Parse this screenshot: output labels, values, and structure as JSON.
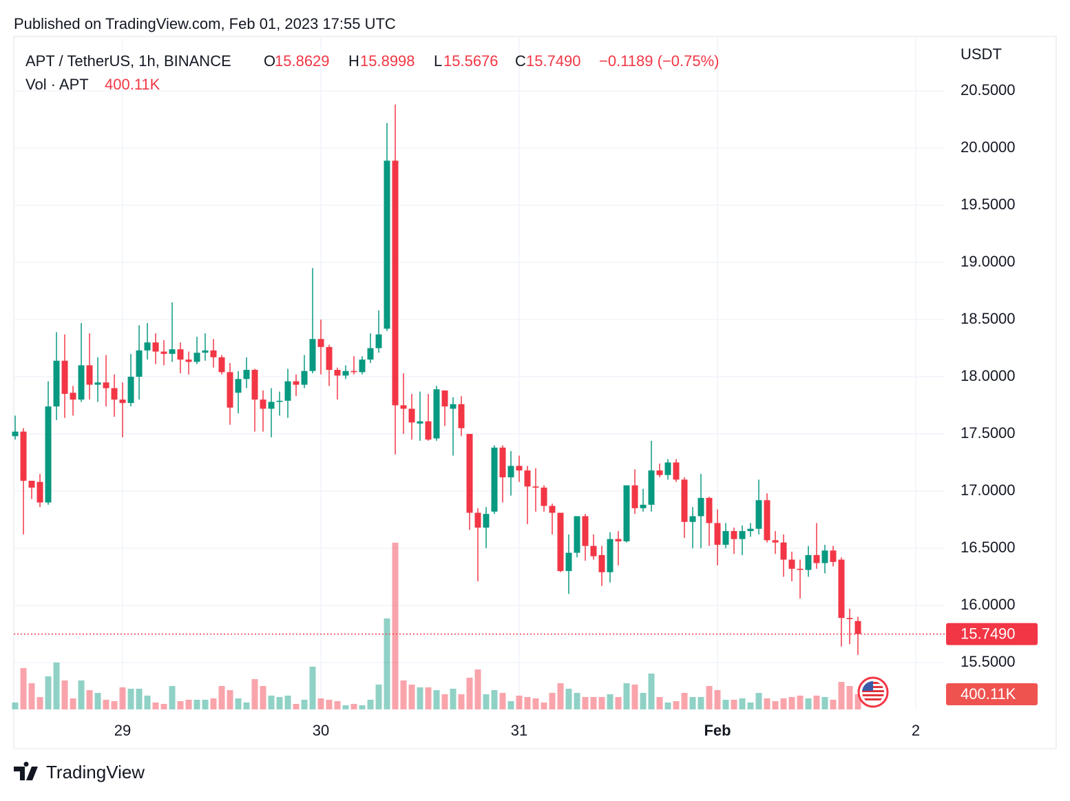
{
  "header": {
    "published": "Published on TradingView.com, Feb 01, 2023 17:55 UTC",
    "symbol": "APT / TetherUS, 1h, BINANCE",
    "o_label": "O",
    "open": "15.8629",
    "h_label": "H",
    "high": "15.8998",
    "l_label": "L",
    "low": "15.5676",
    "c_label": "C",
    "close": "15.7490",
    "change": "−0.1189 (−0.75%)",
    "vol_label": "Vol · APT",
    "volume": "400.11K",
    "currency": "USDT"
  },
  "footer": {
    "brand": "TradingView"
  },
  "chart_data": {
    "type": "candlestick",
    "up_color": "#089981",
    "down_color": "#f23645",
    "grid": true,
    "xlim": [
      -0.17,
      112.5
    ],
    "xticks": [
      {
        "value": 13,
        "label": "29"
      },
      {
        "value": 37,
        "label": "30"
      },
      {
        "value": 61,
        "label": "31"
      },
      {
        "value": 85,
        "label": "Feb"
      },
      {
        "value": 109,
        "label": "2"
      }
    ],
    "ylim": [
      15.09,
      20.964
    ],
    "yticks": [
      {
        "value": 15.5,
        "label": "15.5000"
      },
      {
        "value": 16,
        "label": "16.0000"
      },
      {
        "value": 16.5,
        "label": "16.5000"
      },
      {
        "value": 17,
        "label": "17.0000"
      },
      {
        "value": 17.5,
        "label": "17.5000"
      },
      {
        "value": 18,
        "label": "18.0000"
      },
      {
        "value": 18.5,
        "label": "18.5000"
      },
      {
        "value": 19,
        "label": "19.0000"
      },
      {
        "value": 19.5,
        "label": "19.5000"
      },
      {
        "value": 20,
        "label": "20.0000"
      },
      {
        "value": 20.5,
        "label": "20.5000"
      }
    ],
    "volume_lim": [
      0,
      17730000
    ],
    "open": [
      17.48,
      17.52,
      17.09,
      17.08,
      16.9,
      17.74,
      18.14,
      17.86,
      17.8,
      18.1,
      17.93,
      17.95,
      17.9,
      17.8,
      17.77,
      18.0,
      18.23,
      18.3,
      18.22,
      18.2,
      18.24,
      18.15,
      18.13,
      18.21,
      18.23,
      18.17,
      18.04,
      17.86,
      17.98,
      18.06,
      17.8,
      17.72,
      17.78,
      17.79,
      17.96,
      17.93,
      18.05,
      18.33,
      18.26,
      18.06,
      18.01,
      18.05,
      18.04,
      18.15,
      18.25,
      18.42,
      19.89,
      17.75,
      17.72,
      17.59,
      17.61,
      17.46,
      17.88,
      17.72,
      17.76,
      17.5,
      16.81,
      16.68,
      16.82,
      17.38,
      17.12,
      17.22,
      17.18,
      17.04,
      17.03,
      16.87,
      16.81,
      16.3,
      16.46,
      16.78,
      16.52,
      16.44,
      16.29,
      16.58,
      16.56,
      17.05,
      16.85,
      16.88,
      17.18,
      17.14,
      17.25,
      17.1,
      16.73,
      16.78,
      16.94,
      16.72,
      16.53,
      16.65,
      16.58,
      16.65,
      16.67,
      16.92,
      16.57,
      16.55,
      16.4,
      16.32,
      16.31,
      16.44,
      16.37,
      16.48,
      16.4,
      15.89,
      15.8629
    ],
    "high": [
      17.66,
      17.55,
      17.09,
      17.15,
      17.96,
      18.39,
      18.37,
      17.92,
      18.47,
      18.38,
      18.17,
      18.19,
      18.02,
      17.95,
      18.2,
      18.45,
      18.47,
      18.38,
      18.32,
      18.65,
      18.3,
      18.22,
      18.35,
      18.38,
      18.33,
      18.19,
      18.12,
      18.05,
      18.17,
      18.07,
      17.88,
      17.9,
      17.87,
      18.07,
      18.02,
      18.19,
      18.95,
      18.5,
      18.28,
      18.08,
      18.1,
      18.18,
      18.18,
      18.38,
      18.58,
      20.22,
      20.38,
      18.03,
      17.85,
      17.87,
      17.85,
      17.92,
      17.88,
      17.82,
      17.83,
      17.5,
      16.85,
      16.86,
      17.4,
      17.4,
      17.35,
      17.31,
      17.22,
      17.2,
      17.05,
      16.89,
      16.81,
      16.62,
      16.78,
      16.8,
      16.62,
      16.52,
      16.64,
      16.65,
      17.05,
      17.19,
      17.02,
      17.44,
      17.24,
      17.28,
      17.28,
      17.12,
      16.86,
      17.15,
      16.95,
      16.84,
      16.72,
      16.68,
      16.7,
      16.72,
      17.1,
      16.98,
      16.65,
      16.62,
      16.47,
      16.4,
      16.52,
      16.72,
      16.53,
      16.52,
      16.42,
      15.97,
      15.8998
    ],
    "low": [
      17.45,
      16.62,
      16.93,
      16.86,
      16.88,
      17.62,
      17.64,
      17.66,
      17.78,
      17.8,
      17.78,
      17.74,
      17.65,
      17.47,
      17.74,
      17.8,
      18.15,
      18.11,
      18.1,
      18.13,
      18.03,
      18.02,
      18.11,
      18.14,
      18.08,
      18.02,
      17.58,
      17.68,
      17.9,
      17.52,
      17.52,
      17.47,
      17.66,
      17.64,
      17.83,
      17.9,
      18.03,
      18.02,
      17.92,
      17.8,
      17.98,
      18.02,
      18.02,
      18.12,
      18.21,
      18.4,
      17.32,
      17.5,
      17.45,
      17.44,
      17.44,
      17.44,
      17.57,
      17.31,
      17.48,
      16.66,
      16.21,
      16.5,
      16.8,
      16.9,
      16.96,
      17.08,
      16.71,
      16.82,
      16.82,
      16.62,
      16.29,
      16.1,
      16.42,
      16.39,
      16.4,
      16.17,
      16.2,
      16.35,
      16.55,
      16.8,
      16.82,
      16.82,
      17.12,
      17.1,
      17.08,
      16.59,
      16.5,
      16.5,
      16.52,
      16.35,
      16.5,
      16.45,
      16.44,
      16.6,
      16.62,
      16.55,
      16.45,
      16.25,
      16.21,
      16.06,
      16.25,
      16.32,
      16.28,
      16.34,
      15.64,
      15.66,
      15.5676
    ],
    "close": [
      17.52,
      17.09,
      17.03,
      16.9,
      17.74,
      18.14,
      17.85,
      17.8,
      18.1,
      17.93,
      17.95,
      17.9,
      17.8,
      17.77,
      18.0,
      18.23,
      18.3,
      18.22,
      18.2,
      18.24,
      18.15,
      18.13,
      18.21,
      18.23,
      18.17,
      18.04,
      17.73,
      17.98,
      18.06,
      17.8,
      17.72,
      17.78,
      17.79,
      17.96,
      17.93,
      18.05,
      18.33,
      18.26,
      18.06,
      18.01,
      18.05,
      18.04,
      18.15,
      18.25,
      18.37,
      19.89,
      17.75,
      17.72,
      17.6,
      17.61,
      17.45,
      17.89,
      17.74,
      17.76,
      17.55,
      16.81,
      16.68,
      16.8,
      17.38,
      17.12,
      17.22,
      17.18,
      17.04,
      17.03,
      16.87,
      16.81,
      16.3,
      16.46,
      16.78,
      16.52,
      16.43,
      16.29,
      16.58,
      16.56,
      17.05,
      16.85,
      16.88,
      17.18,
      17.14,
      17.25,
      17.1,
      16.73,
      16.78,
      16.94,
      16.72,
      16.53,
      16.65,
      16.58,
      16.65,
      16.67,
      16.92,
      16.57,
      16.55,
      16.4,
      16.32,
      16.31,
      16.44,
      16.37,
      16.48,
      16.38,
      15.89,
      15.88,
      15.749
    ],
    "volume": [
      182000,
      1091000,
      691000,
      327000,
      873000,
      1237000,
      764000,
      291000,
      764000,
      509000,
      436000,
      255000,
      218000,
      582000,
      546000,
      546000,
      364000,
      182000,
      145000,
      618000,
      218000,
      255000,
      255000,
      255000,
      291000,
      618000,
      509000,
      291000,
      182000,
      800000,
      618000,
      364000,
      327000,
      364000,
      145000,
      255000,
      1128000,
      291000,
      255000,
      218000,
      109000,
      145000,
      109000,
      255000,
      655000,
      2401000,
      4401000,
      764000,
      655000,
      582000,
      582000,
      509000,
      400000,
      546000,
      400000,
      837000,
      1055000,
      400000,
      509000,
      436000,
      218000,
      364000,
      327000,
      291000,
      182000,
      436000,
      691000,
      546000,
      436000,
      327000,
      327000,
      327000,
      400000,
      327000,
      691000,
      655000,
      436000,
      946000,
      327000,
      182000,
      218000,
      436000,
      327000,
      327000,
      618000,
      509000,
      255000,
      255000,
      291000,
      182000,
      436000,
      291000,
      218000,
      291000,
      327000,
      364000,
      291000,
      364000,
      327000,
      255000,
      727000,
      618000,
      400110
    ]
  }
}
